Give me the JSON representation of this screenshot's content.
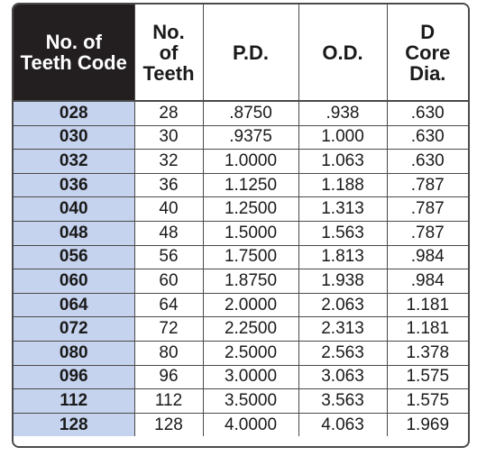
{
  "headers": [
    [
      "No. of",
      "Teeth Code"
    ],
    [
      "No.",
      "of",
      "Teeth"
    ],
    [
      "P.D."
    ],
    [
      "O.D."
    ],
    [
      "D",
      "Core",
      "Dia."
    ]
  ],
  "rows": [
    [
      "028",
      "28",
      ".8750",
      ".938",
      ".630"
    ],
    [
      "030",
      "30",
      ".9375",
      "1.000",
      ".630"
    ],
    [
      "032",
      "32",
      "1.0000",
      "1.063",
      ".630"
    ],
    [
      "036",
      "36",
      "1.1250",
      "1.188",
      ".787"
    ],
    [
      "040",
      "40",
      "1.2500",
      "1.313",
      ".787"
    ],
    [
      "048",
      "48",
      "1.5000",
      "1.563",
      ".787"
    ],
    [
      "056",
      "56",
      "1.7500",
      "1.813",
      ".984"
    ],
    [
      "060",
      "60",
      "1.8750",
      "1.938",
      ".984"
    ],
    [
      "064",
      "64",
      "2.0000",
      "2.063",
      "1.181"
    ],
    [
      "072",
      "72",
      "2.2500",
      "2.313",
      "1.181"
    ],
    [
      "080",
      "80",
      "2.5000",
      "2.563",
      "1.378"
    ],
    [
      "096",
      "96",
      "3.0000",
      "3.063",
      "1.575"
    ],
    [
      "112",
      "112",
      "3.5000",
      "3.563",
      "1.575"
    ],
    [
      "128",
      "128",
      "4.0000",
      "4.063",
      "1.969"
    ]
  ],
  "colors": {
    "code_column_bg": "#c6d3ee",
    "header_dark_bg": "#231f20",
    "border": "#4a4a4a"
  }
}
